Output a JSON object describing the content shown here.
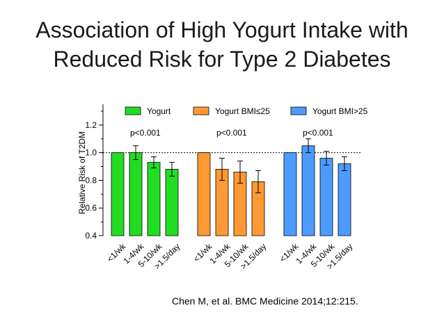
{
  "slide": {
    "title_line1": "Association of High Yogurt Intake with",
    "title_line2": "Reduced Risk for Type 2 Diabetes",
    "citation": "Chen M, et al.  BMC Medicine 2014;12:215."
  },
  "chart_data": {
    "type": "bar",
    "title": "",
    "ylabel": "Relative Risk of T2DM",
    "xlabel": "",
    "ylim": [
      0.4,
      1.35
    ],
    "yticks": [
      "0.4",
      "0.6",
      "0.8",
      "1.0",
      "1.2"
    ],
    "reference_line": 1.0,
    "categories": [
      "<1/wk",
      "1-4/wk",
      "5-10/wk",
      ">1.5/day"
    ],
    "legend_position": "top",
    "series": [
      {
        "name": "Yogurt",
        "color": "#22dd22",
        "values": [
          1.0,
          1.0,
          0.93,
          0.88
        ],
        "error": [
          0,
          0.05,
          0.04,
          0.05
        ],
        "p_value": "p<0.001"
      },
      {
        "name": "Yogurt BMI≤25",
        "color": "#ff9933",
        "values": [
          1.0,
          0.88,
          0.86,
          0.79
        ],
        "error": [
          0,
          0.08,
          0.08,
          0.08
        ],
        "p_value": "p<0.001"
      },
      {
        "name": "Yogurt BMI>25",
        "color": "#4c9bff",
        "values": [
          1.0,
          1.05,
          0.96,
          0.92
        ],
        "error": [
          0,
          0.05,
          0.05,
          0.05
        ],
        "p_value": "p<0.001"
      }
    ]
  }
}
